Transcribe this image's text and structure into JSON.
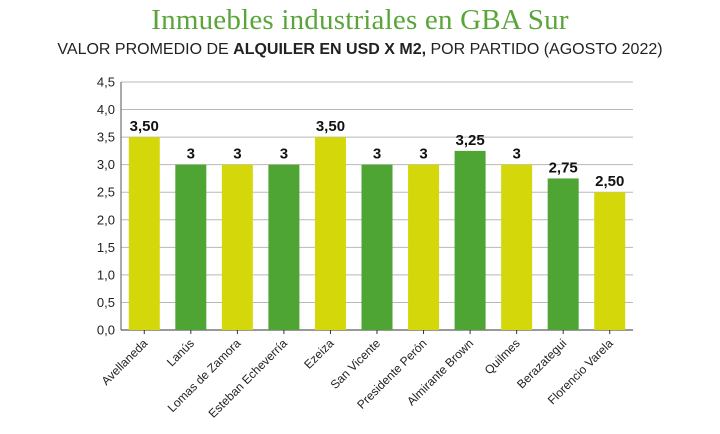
{
  "header": {
    "title": "Inmuebles industriales en GBA Sur",
    "subtitle_pre": "VALOR PROMEDIO DE ",
    "subtitle_bold": "ALQUILER EN USD X M2,",
    "subtitle_post": " POR PARTIDO (AGOSTO 2022)"
  },
  "colors": {
    "yellow": "#d4d80a",
    "green": "#4ea534",
    "grid": "#b8b8b8",
    "title": "#5aa53a"
  },
  "chart_data": {
    "type": "bar",
    "title": "Inmuebles industriales en GBA Sur",
    "subtitle": "VALOR PROMEDIO DE ALQUILER EN USD X M2, POR PARTIDO (AGOSTO 2022)",
    "xlabel": "",
    "ylabel": "",
    "ylim": [
      0,
      4.5
    ],
    "yticks": [
      "0,0",
      "0,5",
      "1,0",
      "1,5",
      "2,0",
      "2,5",
      "3,0",
      "3,5",
      "4,0",
      "4,5"
    ],
    "grid": true,
    "categories": [
      "Avellaneda",
      "Lanús",
      "Lomas de Zamora",
      "Esteban Echeverría",
      "Ezeiza",
      "San Vicente",
      "Presidente Perón",
      "Almirante Brown",
      "Quilmes",
      "Berazategui",
      "Florencio Varela"
    ],
    "values": [
      3.5,
      3,
      3,
      3,
      3.5,
      3,
      3,
      3.25,
      3,
      2.75,
      2.5
    ],
    "data_labels": [
      "3,50",
      "3",
      "3",
      "3",
      "3,50",
      "3",
      "3",
      "3,25",
      "3",
      "2,75",
      "2,50"
    ],
    "bar_colors": [
      "yellow",
      "green",
      "yellow",
      "green",
      "yellow",
      "green",
      "yellow",
      "green",
      "yellow",
      "green",
      "yellow"
    ]
  }
}
